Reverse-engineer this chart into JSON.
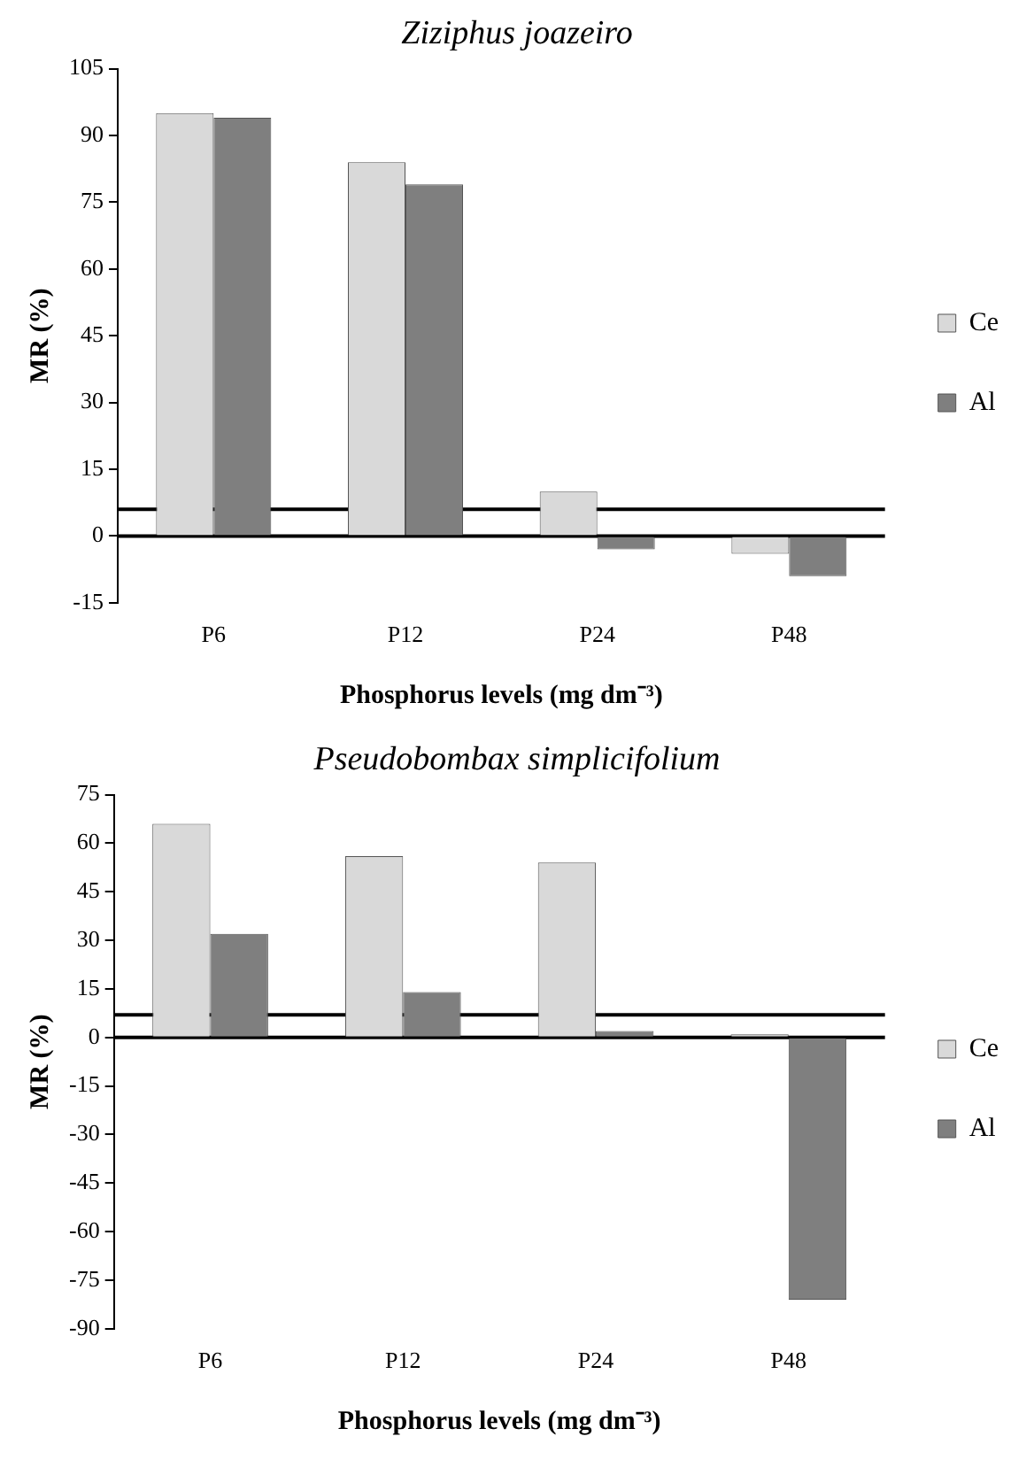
{
  "chart_data": [
    {
      "type": "bar",
      "title": "Ziziphus joazeiro",
      "xlabel": "Phosphorus levels (mg dm⁻³)",
      "ylabel": "MR (%)",
      "categories": [
        "P6",
        "P12",
        "P24",
        "P48"
      ],
      "series": [
        {
          "name": "Ce",
          "color": "#d9d9d9",
          "values": [
            95,
            84,
            10,
            -4
          ]
        },
        {
          "name": "Al",
          "color": "#7f7f7f",
          "values": [
            94,
            79,
            -3,
            -9
          ]
        }
      ],
      "ylim": [
        -15,
        105
      ],
      "yticks": [
        -15,
        0,
        15,
        30,
        45,
        60,
        75,
        90,
        105
      ],
      "ref_lines": [
        {
          "axis": "y",
          "value": 0,
          "color": "#000000"
        },
        {
          "axis": "y",
          "value": 6,
          "color": "#000000"
        }
      ],
      "grid": false,
      "legend": "right"
    },
    {
      "type": "bar",
      "title": "Pseudobombax simplicifolium",
      "xlabel": "Phosphorus levels (mg dm⁻³)",
      "ylabel": "MR (%)",
      "categories": [
        "P6",
        "P12",
        "P24",
        "P48"
      ],
      "series": [
        {
          "name": "Ce",
          "color": "#d9d9d9",
          "values": [
            66,
            56,
            54,
            1
          ]
        },
        {
          "name": "Al",
          "color": "#7f7f7f",
          "values": [
            32,
            14,
            2,
            -81
          ]
        }
      ],
      "ylim": [
        -90,
        75
      ],
      "yticks": [
        -90,
        -75,
        -60,
        -45,
        -30,
        -15,
        0,
        15,
        30,
        45,
        60,
        75
      ],
      "ref_lines": [
        {
          "axis": "y",
          "value": 0,
          "color": "#000000"
        },
        {
          "axis": "y",
          "value": 7,
          "color": "#000000"
        }
      ],
      "grid": false,
      "legend": "right"
    }
  ]
}
